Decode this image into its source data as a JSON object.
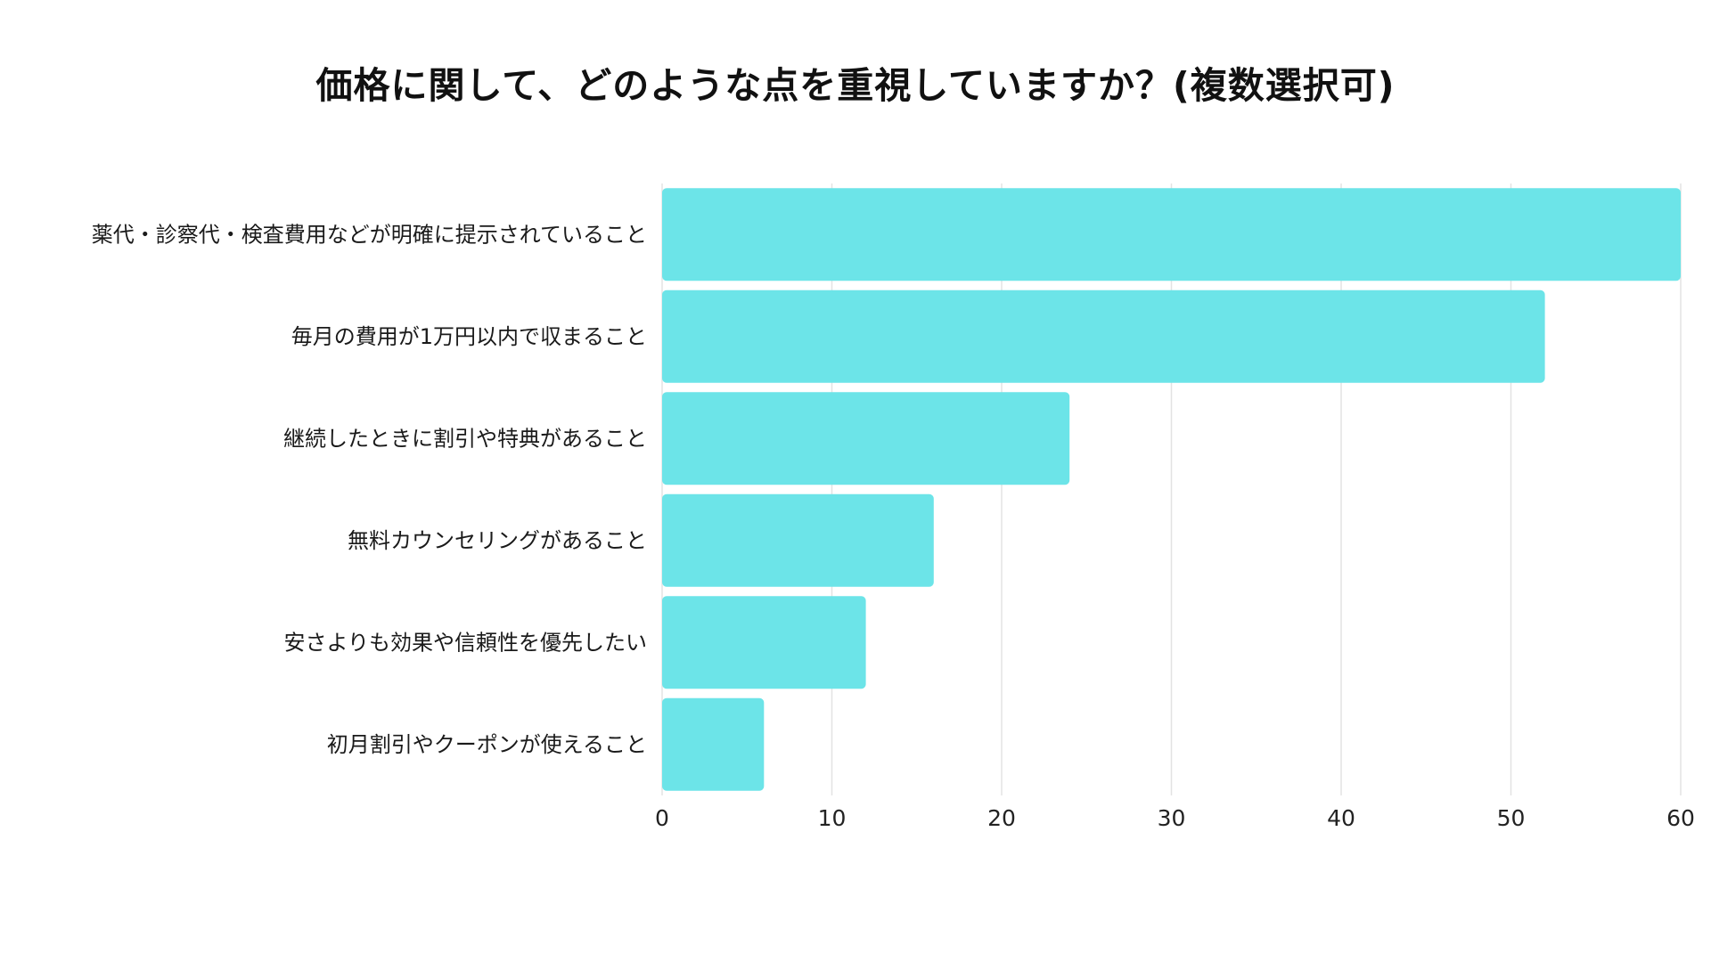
{
  "title": "価格に関して、どのような点を重視していますか？(複数選択可)",
  "chart_data": {
    "type": "bar",
    "orientation": "horizontal",
    "title": "価格に関して、どのような点を重視していますか？(複数選択可)",
    "categories": [
      "薬代・診察代・検査費用などが明確に提示されていること",
      "毎月の費用が1万円以内で収まること",
      "継続したときに割引や特典があること",
      "無料カウンセリングがあること",
      "安さよりも効果や信頼性を優先したい",
      "初月割引やクーポンが使えること"
    ],
    "values": [
      60,
      52,
      24,
      16,
      12,
      6
    ],
    "xlim": [
      0,
      60
    ],
    "ticks": [
      0,
      10,
      20,
      30,
      40,
      50,
      60
    ],
    "xlabel": "",
    "ylabel": "",
    "grid": true,
    "legend": "none",
    "bar_color": "#6ce4e8",
    "grid_color": "#e3e3e3"
  }
}
